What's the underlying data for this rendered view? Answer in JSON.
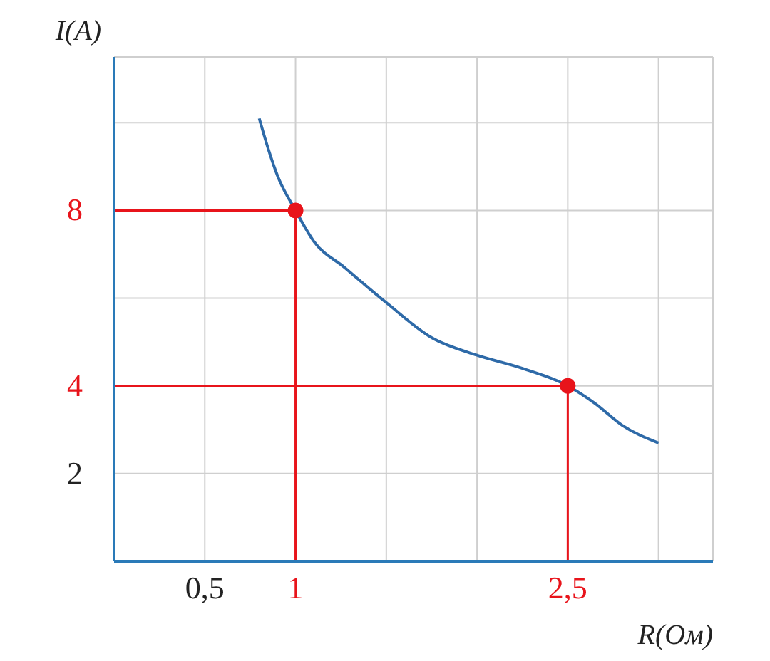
{
  "chart_data": {
    "type": "line",
    "xlabel": "R(Ом)",
    "ylabel": "I(A)",
    "xlim": [
      0,
      3.3
    ],
    "ylim": [
      0,
      11.5
    ],
    "xticks": [
      {
        "value": 0.5,
        "label": "0,5"
      },
      {
        "value": 1,
        "label": "1"
      },
      {
        "value": 1.5,
        "label": null
      },
      {
        "value": 2,
        "label": null
      },
      {
        "value": 2.5,
        "label": "2,5"
      },
      {
        "value": 3,
        "label": null
      }
    ],
    "yticks": [
      {
        "value": 2,
        "label": "2"
      },
      {
        "value": 4,
        "label": "4"
      },
      {
        "value": 6,
        "label": null
      },
      {
        "value": 8,
        "label": "8"
      },
      {
        "value": 10,
        "label": null
      }
    ],
    "grid": true,
    "series": [
      {
        "color": "#2e6aa8",
        "x": [
          0.8,
          0.85,
          0.9,
          1,
          1.1,
          1.27,
          1.5,
          1.75,
          2,
          2.25,
          2.5,
          2.65,
          2.8,
          3
        ],
        "values": [
          10.1,
          9.4,
          8.8,
          8,
          7.3,
          6.7,
          5.9,
          5.1,
          4.7,
          4.4,
          4,
          3.6,
          3.1,
          2.7
        ]
      },
      {
        "type": "scatter",
        "marker": "circle",
        "color": "#e8141b",
        "x": [
          1,
          2.5
        ],
        "values": [
          8,
          4
        ]
      }
    ],
    "ref_lines": [
      {
        "axis": "x",
        "value": 1,
        "color": "#e8141b"
      },
      {
        "axis": "x",
        "value": 2.5,
        "color": "#e8141b"
      },
      {
        "axis": "y",
        "value": 8,
        "color": "#e8141b"
      },
      {
        "axis": "y",
        "value": 4,
        "color": "#e8141b"
      }
    ]
  }
}
